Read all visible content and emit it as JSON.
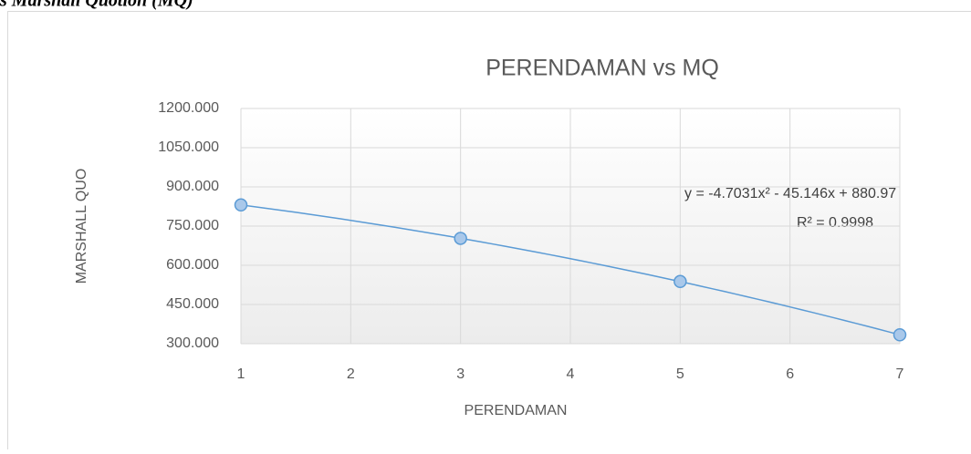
{
  "caption": "s Marshall Quotion (MQ)",
  "chart_data": {
    "type": "scatter",
    "title": "PERENDAMAN vs MQ",
    "x_label": "PERENDAMAN",
    "y_label": "MARSHALL QUO",
    "x": [
      1,
      3,
      5,
      7
    ],
    "values": [
      831,
      703,
      538,
      334
    ],
    "color": "#5b9bd5",
    "xlim": [
      1,
      7
    ],
    "xticks": [
      1,
      2,
      3,
      4,
      5,
      6,
      7
    ],
    "ylim": [
      300,
      1200
    ],
    "yticks": [
      {
        "value": 300,
        "label": "300.000"
      },
      {
        "value": 450,
        "label": "450.000"
      },
      {
        "value": 600,
        "label": "600.000"
      },
      {
        "value": 750,
        "label": "750.000"
      },
      {
        "value": 900,
        "label": "900.000"
      },
      {
        "value": 1050,
        "label": "1050.000"
      },
      {
        "value": 1200,
        "label": "1200.000"
      }
    ],
    "grid": true,
    "trendline": {
      "type": "polynomial",
      "order": 2,
      "equation": "y = -4.7031x² - 45.146x + 880.97",
      "r2_label": "R² = 0.9998"
    }
  }
}
